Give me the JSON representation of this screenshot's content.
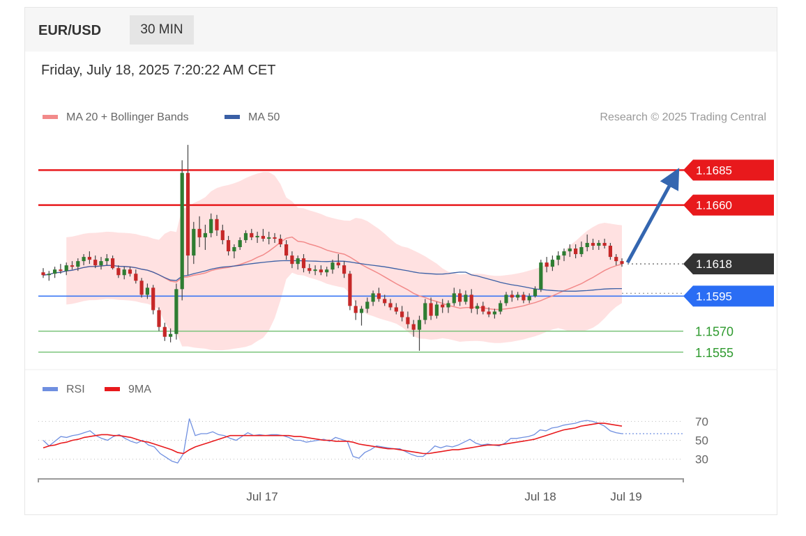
{
  "header": {
    "pair": "EUR/USD",
    "timeframe": "30 MIN"
  },
  "timestamp": "Friday, July 18, 2025 7:20:22 AM CET",
  "legend": {
    "ma20_label": "MA 20 + Bollinger Bands",
    "ma50_label": "MA 50",
    "rsi_label": "RSI",
    "ma9_label": "9MA"
  },
  "credit": "Research © 2025 Trading Central",
  "colors": {
    "resistance": "#e8191c",
    "support_level": "#2a6df4",
    "support_minor": "#7cc47c",
    "price_box": "#333333",
    "ma50": "#3a5fa5",
    "bollinger_fill": "#ffdcdc",
    "ma20": "#f28a8a",
    "arrow": "#3466b0",
    "rsi": "#6f8fe0",
    "ma9": "#e8191c",
    "candle_up": "#2e7d32",
    "candle_down": "#c62828"
  },
  "chart_data": [
    {
      "type": "candlestick",
      "timeframe": "30 MIN",
      "x_ticks": [
        "Jul 17",
        "Jul 18",
        "Jul 19"
      ],
      "ylim": [
        1.1548,
        1.1712
      ],
      "levels": [
        {
          "value": 1.1685,
          "label": "1.1685",
          "kind": "resistance"
        },
        {
          "value": 1.166,
          "label": "1.1660",
          "kind": "resistance"
        },
        {
          "value": 1.1618,
          "label": "1.1618",
          "kind": "current"
        },
        {
          "value": 1.1595,
          "label": "1.1595",
          "kind": "support"
        },
        {
          "value": 1.157,
          "label": "1.1570",
          "kind": "support-minor"
        },
        {
          "value": 1.1555,
          "label": "1.1555",
          "kind": "support-minor"
        }
      ],
      "projection": {
        "from": 1.1618,
        "to": 1.1685
      },
      "ohlc": [
        [
          1.1612,
          1.1615,
          1.1608,
          1.161
        ],
        [
          1.161,
          1.1613,
          1.1606,
          1.1611
        ],
        [
          1.1611,
          1.1616,
          1.1608,
          1.1614
        ],
        [
          1.1614,
          1.1618,
          1.1611,
          1.1613
        ],
        [
          1.1613,
          1.1619,
          1.161,
          1.1617
        ],
        [
          1.1617,
          1.162,
          1.1614,
          1.1616
        ],
        [
          1.1616,
          1.1622,
          1.1613,
          1.162
        ],
        [
          1.162,
          1.1625,
          1.1617,
          1.1623
        ],
        [
          1.1623,
          1.1627,
          1.1618,
          1.1621
        ],
        [
          1.1621,
          1.1624,
          1.1615,
          1.1617
        ],
        [
          1.1617,
          1.1623,
          1.1614,
          1.162
        ],
        [
          1.162,
          1.1625,
          1.1617,
          1.1622
        ],
        [
          1.1622,
          1.1624,
          1.1614,
          1.1615
        ],
        [
          1.1615,
          1.1617,
          1.1608,
          1.161
        ],
        [
          1.161,
          1.1616,
          1.1607,
          1.1614
        ],
        [
          1.1614,
          1.1616,
          1.1609,
          1.1611
        ],
        [
          1.1611,
          1.1614,
          1.1604,
          1.1606
        ],
        [
          1.1606,
          1.1608,
          1.1594,
          1.1596
        ],
        [
          1.1596,
          1.1604,
          1.1593,
          1.1601
        ],
        [
          1.1601,
          1.1603,
          1.1582,
          1.1585
        ],
        [
          1.1585,
          1.1587,
          1.157,
          1.1573
        ],
        [
          1.1573,
          1.1576,
          1.1563,
          1.1566
        ],
        [
          1.1566,
          1.1572,
          1.1562,
          1.1568
        ],
        [
          1.1568,
          1.1604,
          1.1564,
          1.16
        ],
        [
          1.16,
          1.1692,
          1.1592,
          1.1683
        ],
        [
          1.1683,
          1.1703,
          1.161,
          1.1624
        ],
        [
          1.1624,
          1.1648,
          1.1618,
          1.1643
        ],
        [
          1.1643,
          1.1652,
          1.163,
          1.1637
        ],
        [
          1.1637,
          1.1646,
          1.1628,
          1.164
        ],
        [
          1.164,
          1.1654,
          1.1637,
          1.165
        ],
        [
          1.165,
          1.1653,
          1.1638,
          1.1642
        ],
        [
          1.1642,
          1.1646,
          1.1632,
          1.1635
        ],
        [
          1.1635,
          1.1638,
          1.1624,
          1.1627
        ],
        [
          1.1627,
          1.1632,
          1.1622,
          1.163
        ],
        [
          1.163,
          1.1637,
          1.1628,
          1.1635
        ],
        [
          1.1635,
          1.1642,
          1.1633,
          1.164
        ],
        [
          1.164,
          1.1643,
          1.1635,
          1.1637
        ],
        [
          1.1637,
          1.1641,
          1.1633,
          1.1638
        ],
        [
          1.1638,
          1.1643,
          1.1634,
          1.1636
        ],
        [
          1.1636,
          1.1641,
          1.1632,
          1.1637
        ],
        [
          1.1637,
          1.164,
          1.1633,
          1.1636
        ],
        [
          1.1636,
          1.1639,
          1.163,
          1.1632
        ],
        [
          1.1632,
          1.1635,
          1.1621,
          1.1624
        ],
        [
          1.1624,
          1.1627,
          1.1615,
          1.1618
        ],
        [
          1.1618,
          1.1624,
          1.1614,
          1.1622
        ],
        [
          1.1622,
          1.1625,
          1.1612,
          1.1615
        ],
        [
          1.1615,
          1.1618,
          1.1611,
          1.1613
        ],
        [
          1.1613,
          1.1617,
          1.161,
          1.1614
        ],
        [
          1.1614,
          1.1617,
          1.161,
          1.1612
        ],
        [
          1.1612,
          1.1616,
          1.1609,
          1.1614
        ],
        [
          1.1614,
          1.1621,
          1.1611,
          1.1619
        ],
        [
          1.1619,
          1.1625,
          1.1615,
          1.1617
        ],
        [
          1.1617,
          1.162,
          1.1608,
          1.1611
        ],
        [
          1.1611,
          1.1613,
          1.1585,
          1.1588
        ],
        [
          1.1588,
          1.1592,
          1.1578,
          1.1583
        ],
        [
          1.1583,
          1.1588,
          1.1574,
          1.1586
        ],
        [
          1.1586,
          1.1594,
          1.1583,
          1.1591
        ],
        [
          1.1591,
          1.1599,
          1.1588,
          1.1597
        ],
        [
          1.1597,
          1.1601,
          1.1591,
          1.1593
        ],
        [
          1.1593,
          1.1596,
          1.1588,
          1.159
        ],
        [
          1.159,
          1.1593,
          1.1585,
          1.1587
        ],
        [
          1.1587,
          1.159,
          1.1582,
          1.1584
        ],
        [
          1.1584,
          1.1588,
          1.1577,
          1.158
        ],
        [
          1.158,
          1.1584,
          1.1572,
          1.1575
        ],
        [
          1.1575,
          1.1578,
          1.1566,
          1.1571
        ],
        [
          1.1571,
          1.1581,
          1.1556,
          1.1578
        ],
        [
          1.1578,
          1.1593,
          1.1575,
          1.159
        ],
        [
          1.159,
          1.1594,
          1.1578,
          1.1581
        ],
        [
          1.1581,
          1.1591,
          1.1579,
          1.1589
        ],
        [
          1.1589,
          1.1593,
          1.1583,
          1.1587
        ],
        [
          1.1587,
          1.1592,
          1.1583,
          1.159
        ],
        [
          1.159,
          1.1601,
          1.1588,
          1.1597
        ],
        [
          1.1597,
          1.16,
          1.1588,
          1.1591
        ],
        [
          1.1591,
          1.1599,
          1.1589,
          1.1596
        ],
        [
          1.1596,
          1.16,
          1.1583,
          1.1586
        ],
        [
          1.1586,
          1.159,
          1.1582,
          1.1588
        ],
        [
          1.1588,
          1.1591,
          1.1582,
          1.1584
        ],
        [
          1.1584,
          1.1587,
          1.158,
          1.1582
        ],
        [
          1.1582,
          1.1586,
          1.1579,
          1.1584
        ],
        [
          1.1584,
          1.1592,
          1.1582,
          1.159
        ],
        [
          1.159,
          1.1598,
          1.1588,
          1.1596
        ],
        [
          1.1596,
          1.1599,
          1.1591,
          1.1594
        ],
        [
          1.1594,
          1.1598,
          1.1592,
          1.1596
        ],
        [
          1.1596,
          1.1598,
          1.159,
          1.1592
        ],
        [
          1.1592,
          1.1597,
          1.159,
          1.1595
        ],
        [
          1.1595,
          1.1602,
          1.1594,
          1.16
        ],
        [
          1.16,
          1.1621,
          1.1598,
          1.1619
        ],
        [
          1.1619,
          1.1623,
          1.1612,
          1.1616
        ],
        [
          1.1616,
          1.1624,
          1.1613,
          1.1621
        ],
        [
          1.1621,
          1.1627,
          1.1617,
          1.1624
        ],
        [
          1.1624,
          1.1629,
          1.162,
          1.1627
        ],
        [
          1.1627,
          1.1632,
          1.1623,
          1.1629
        ],
        [
          1.1629,
          1.1632,
          1.1622,
          1.1625
        ],
        [
          1.1625,
          1.1634,
          1.1623,
          1.163
        ],
        [
          1.163,
          1.1639,
          1.1627,
          1.1633
        ],
        [
          1.1633,
          1.1636,
          1.1628,
          1.1631
        ],
        [
          1.1631,
          1.1635,
          1.1628,
          1.1633
        ],
        [
          1.1633,
          1.1636,
          1.1629,
          1.1631
        ],
        [
          1.1631,
          1.1633,
          1.1621,
          1.1623
        ],
        [
          1.1623,
          1.1625,
          1.1617,
          1.162
        ],
        [
          1.162,
          1.1622,
          1.1616,
          1.1618
        ]
      ]
    },
    {
      "type": "line",
      "series": [
        {
          "name": "RSI",
          "values": [
            50,
            44,
            49,
            54,
            53,
            55,
            56,
            58,
            60,
            55,
            52,
            50,
            54,
            56,
            52,
            49,
            47,
            50,
            45,
            43,
            36,
            32,
            28,
            26,
            36,
            73,
            55,
            57,
            57,
            59,
            56,
            55,
            52,
            50,
            54,
            58,
            55,
            56,
            55,
            56,
            56,
            55,
            53,
            50,
            50,
            48,
            49,
            50,
            51,
            49,
            53,
            51,
            49,
            33,
            31,
            37,
            40,
            44,
            43,
            42,
            41,
            41,
            38,
            35,
            33,
            33,
            38,
            44,
            42,
            44,
            43,
            45,
            48,
            51,
            47,
            45,
            46,
            45,
            44,
            47,
            52,
            52,
            53,
            54,
            56,
            61,
            60,
            63,
            64,
            66,
            67,
            68,
            70,
            71,
            70,
            68,
            65,
            60,
            58,
            57
          ]
        },
        {
          "name": "9MA",
          "values": [
            42,
            44,
            45,
            47,
            48,
            50,
            51,
            53,
            54,
            55,
            56,
            56,
            55,
            55,
            54,
            53,
            51,
            49,
            48,
            46,
            44,
            42,
            40,
            37,
            36,
            40,
            43,
            45,
            47,
            49,
            51,
            53,
            55,
            55,
            55,
            55,
            55,
            55,
            55,
            55,
            55,
            55,
            55,
            54,
            54,
            53,
            52,
            51,
            50,
            50,
            49,
            49,
            49,
            48,
            46,
            45,
            44,
            43,
            42,
            41,
            41,
            40,
            39,
            38,
            37,
            36,
            36,
            37,
            38,
            39,
            40,
            40,
            41,
            42,
            43,
            44,
            45,
            45,
            45,
            46,
            47,
            48,
            49,
            50,
            51,
            53,
            55,
            57,
            59,
            61,
            62,
            63,
            65,
            66,
            67,
            68,
            68,
            67,
            66,
            65
          ]
        }
      ],
      "ylim": [
        15,
        85
      ],
      "y_ticks": [
        70,
        50,
        30
      ]
    }
  ]
}
